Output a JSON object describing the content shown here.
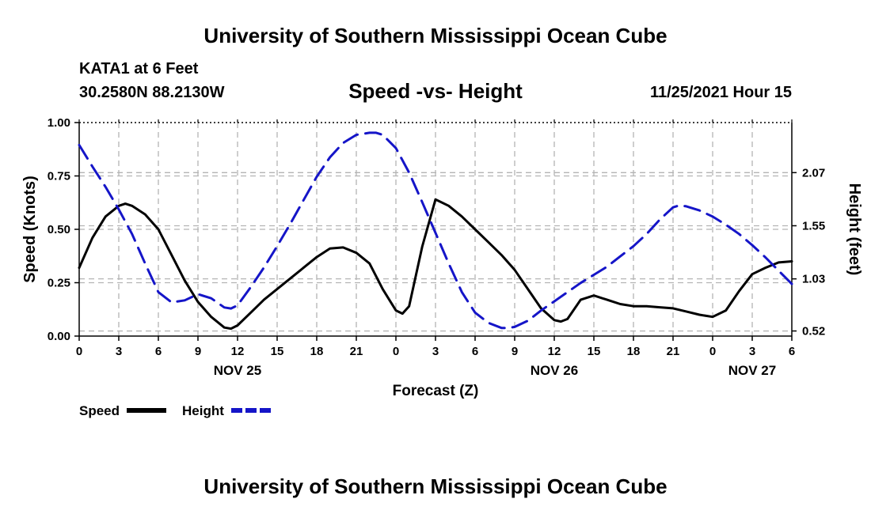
{
  "header": {
    "title": "University of Southern Mississippi Ocean Cube",
    "station": "KATA1 at 6 Feet",
    "coordinates": "30.2580N  88.2130W",
    "chart_title": "Speed -vs- Height",
    "datetime": "11/25/2021 Hour 15"
  },
  "footer": {
    "title": "University of Southern Mississippi Ocean Cube"
  },
  "colors": {
    "speed": "#000000",
    "height": "#1515c8",
    "grid": "#b4b4b4"
  },
  "chart_data": {
    "type": "line",
    "title": "Speed -vs- Height",
    "xlabel": "Forecast (Z)",
    "ylabel": "Speed (Knots)",
    "y2label": "Height (feet)",
    "xlim": [
      0,
      54
    ],
    "ylim": [
      0,
      1.0
    ],
    "y2lim": [
      0.47,
      2.56
    ],
    "x_ticks": [
      0,
      3,
      6,
      9,
      12,
      15,
      18,
      21,
      24,
      27,
      30,
      33,
      36,
      39,
      42,
      45,
      48,
      51,
      54
    ],
    "x_tick_labels": [
      "0",
      "3",
      "6",
      "9",
      "12",
      "15",
      "18",
      "21",
      "0",
      "3",
      "6",
      "9",
      "12",
      "15",
      "18",
      "21",
      "0",
      "3",
      "6"
    ],
    "y_ticks": [
      0.0,
      0.25,
      0.5,
      0.75,
      1.0
    ],
    "y_tick_labels": [
      "0.00",
      "0.25",
      "0.50",
      "0.75",
      "1.00"
    ],
    "y2_ticks": [
      0.52,
      1.03,
      1.55,
      2.07
    ],
    "y2_tick_labels": [
      "0.52",
      "1.03",
      "1.55",
      "2.07"
    ],
    "date_labels": [
      {
        "x": 12,
        "label": "NOV 25"
      },
      {
        "x": 36,
        "label": "NOV 26"
      },
      {
        "x": 51,
        "label": "NOV 27"
      }
    ],
    "series": [
      {
        "name": "Speed",
        "axis": "left",
        "style": "solid",
        "x": [
          0,
          1,
          2,
          3,
          3.5,
          4,
          5,
          6,
          7,
          8,
          9,
          10,
          11,
          11.5,
          12,
          13,
          14,
          15,
          16,
          17,
          18,
          19,
          20,
          21,
          22,
          23,
          24,
          24.5,
          25,
          26,
          27,
          28,
          29,
          30,
          31,
          32,
          33,
          34,
          35,
          36,
          36.5,
          37,
          38,
          39,
          40,
          41,
          42,
          43,
          44,
          45,
          46,
          47,
          48,
          49,
          50,
          51,
          52,
          53,
          54
        ],
        "y": [
          0.32,
          0.46,
          0.56,
          0.61,
          0.62,
          0.61,
          0.57,
          0.5,
          0.38,
          0.26,
          0.16,
          0.09,
          0.04,
          0.035,
          0.05,
          0.11,
          0.17,
          0.22,
          0.27,
          0.32,
          0.37,
          0.41,
          0.415,
          0.39,
          0.34,
          0.22,
          0.12,
          0.105,
          0.14,
          0.42,
          0.64,
          0.61,
          0.56,
          0.5,
          0.44,
          0.38,
          0.31,
          0.22,
          0.13,
          0.075,
          0.068,
          0.08,
          0.17,
          0.19,
          0.17,
          0.15,
          0.14,
          0.14,
          0.135,
          0.13,
          0.115,
          0.1,
          0.09,
          0.12,
          0.21,
          0.29,
          0.32,
          0.345,
          0.35
        ]
      },
      {
        "name": "Height",
        "axis": "right",
        "style": "dashed",
        "x": [
          0,
          1,
          2,
          3,
          4,
          5,
          6,
          7,
          8,
          9,
          10,
          11,
          11.5,
          12,
          13,
          14,
          15,
          16,
          17,
          18,
          19,
          20,
          21,
          22,
          22.5,
          23,
          24,
          25,
          26,
          27,
          28,
          29,
          30,
          31,
          32,
          32.5,
          33,
          34,
          35,
          36,
          37,
          38,
          39,
          40,
          41,
          42,
          43,
          44,
          45,
          45.5,
          46,
          47,
          48,
          49,
          50,
          51,
          52,
          53,
          54
        ],
        "y": [
          2.34,
          2.13,
          1.93,
          1.71,
          1.47,
          1.18,
          0.9,
          0.8,
          0.82,
          0.88,
          0.84,
          0.75,
          0.74,
          0.77,
          0.95,
          1.14,
          1.35,
          1.57,
          1.8,
          2.03,
          2.22,
          2.36,
          2.44,
          2.46,
          2.46,
          2.44,
          2.31,
          2.07,
          1.78,
          1.48,
          1.18,
          0.9,
          0.7,
          0.6,
          0.55,
          0.55,
          0.56,
          0.62,
          0.72,
          0.81,
          0.9,
          0.99,
          1.07,
          1.15,
          1.25,
          1.35,
          1.47,
          1.61,
          1.73,
          1.75,
          1.74,
          1.7,
          1.64,
          1.56,
          1.47,
          1.36,
          1.24,
          1.11,
          0.98
        ]
      }
    ],
    "legend": [
      {
        "name": "Speed",
        "style": "solid"
      },
      {
        "name": "Height",
        "style": "dashed"
      }
    ],
    "legend_position": "bottom-left"
  }
}
